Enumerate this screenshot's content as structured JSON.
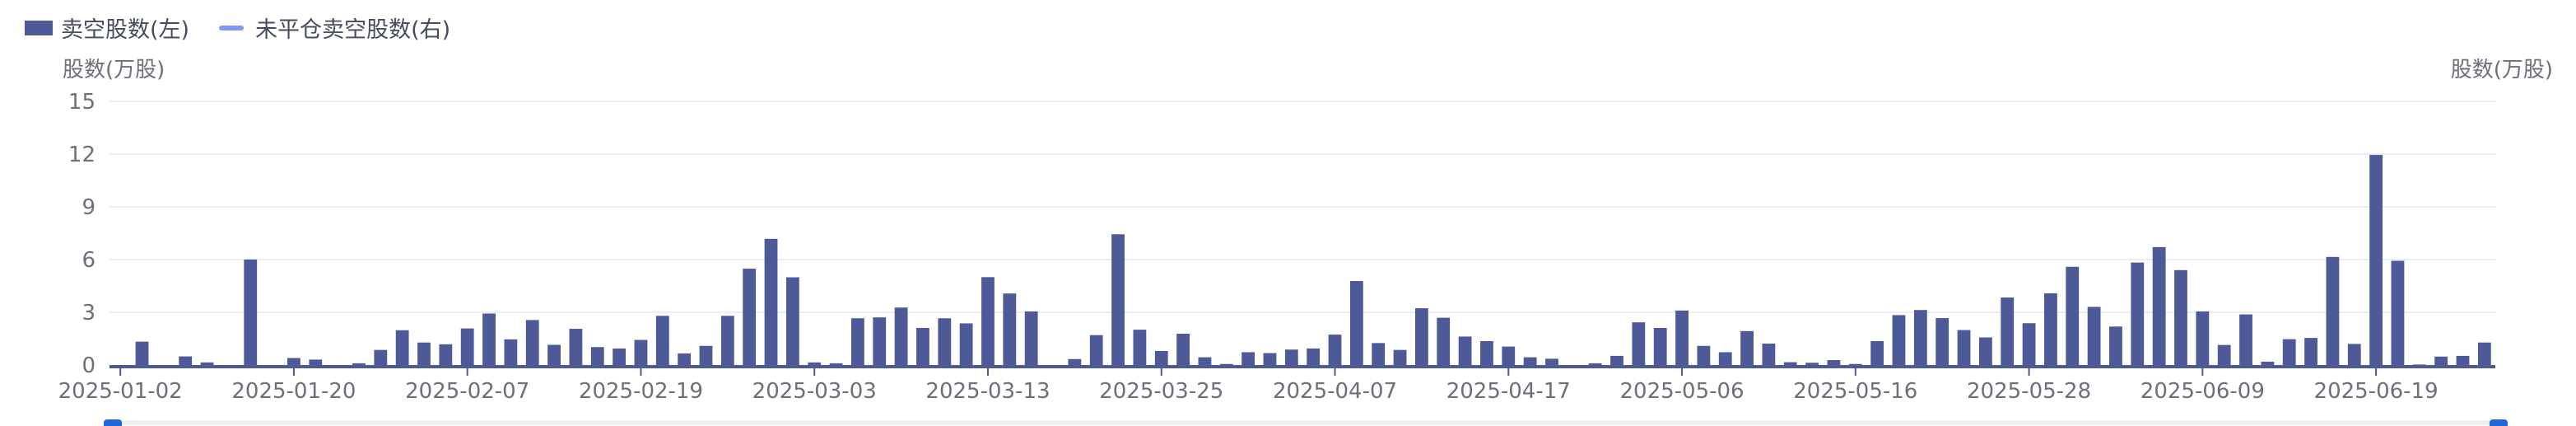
{
  "legend": {
    "items": [
      {
        "label": "卖空股数(左)",
        "kind": "bar",
        "color": "#4e5a98"
      },
      {
        "label": "未平仓卖空股数(右)",
        "kind": "line",
        "color": "#8097f7"
      }
    ]
  },
  "colors": {
    "bar": "#4e5a98",
    "grid": "#ececf4",
    "axis_text": "#6e7079",
    "axis_line": "#4e5a98",
    "scroll_handle": "#2266dd"
  },
  "chart_data": {
    "type": "bar",
    "y_left_label": "股数(万股)",
    "y_right_label": "股数(万股)",
    "ylim": [
      0,
      15
    ],
    "y_ticks": [
      0,
      3,
      6,
      9,
      12,
      15
    ],
    "grid": true,
    "legend_position": "top-left",
    "x_tick_labels": [
      "2025-01-02",
      "2025-01-20",
      "2025-02-07",
      "2025-02-19",
      "2025-03-03",
      "2025-03-13",
      "2025-03-25",
      "2025-04-07",
      "2025-04-17",
      "2025-05-06",
      "2025-05-16",
      "2025-05-28",
      "2025-06-09",
      "2025-06-19"
    ],
    "x_tick_every": 8,
    "series": [
      {
        "name": "卖空股数(左)",
        "axis": "left",
        "values": [
          0,
          1.33,
          0,
          0.49,
          0.15,
          0,
          6.0,
          0,
          0.4,
          0.31,
          0,
          0.1,
          0.86,
          1.98,
          1.28,
          1.18,
          2.08,
          2.93,
          1.46,
          2.56,
          1.15,
          2.06,
          1.02,
          0.94,
          1.43,
          2.8,
          0.66,
          1.09,
          2.8,
          5.48,
          7.18,
          4.99,
          0.15,
          0.1,
          2.66,
          2.71,
          3.27,
          2.11,
          2.66,
          2.37,
          5.0,
          4.07,
          3.05,
          0,
          0.34,
          1.7,
          7.44,
          2.01,
          0.8,
          1.78,
          0.44,
          0.06,
          0.73,
          0.68,
          0.88,
          0.94,
          1.73,
          4.78,
          1.25,
          0.86,
          3.23,
          2.69,
          1.62,
          1.36,
          1.05,
          0.44,
          0.36,
          0,
          0.1,
          0.52,
          2.43,
          2.11,
          3.1,
          1.09,
          0.73,
          1.93,
          1.22,
          0.16,
          0.13,
          0.28,
          0.06,
          1.36,
          2.84,
          3.13,
          2.67,
          1.99,
          1.57,
          3.84,
          2.38,
          4.08,
          5.59,
          3.31,
          2.19,
          5.83,
          6.71,
          5.4,
          3.05,
          1.14,
          2.88,
          0.19,
          1.47,
          1.54,
          6.15,
          1.2,
          11.95,
          5.93,
          0.03,
          0.48,
          0.52,
          1.28
        ]
      }
    ]
  }
}
